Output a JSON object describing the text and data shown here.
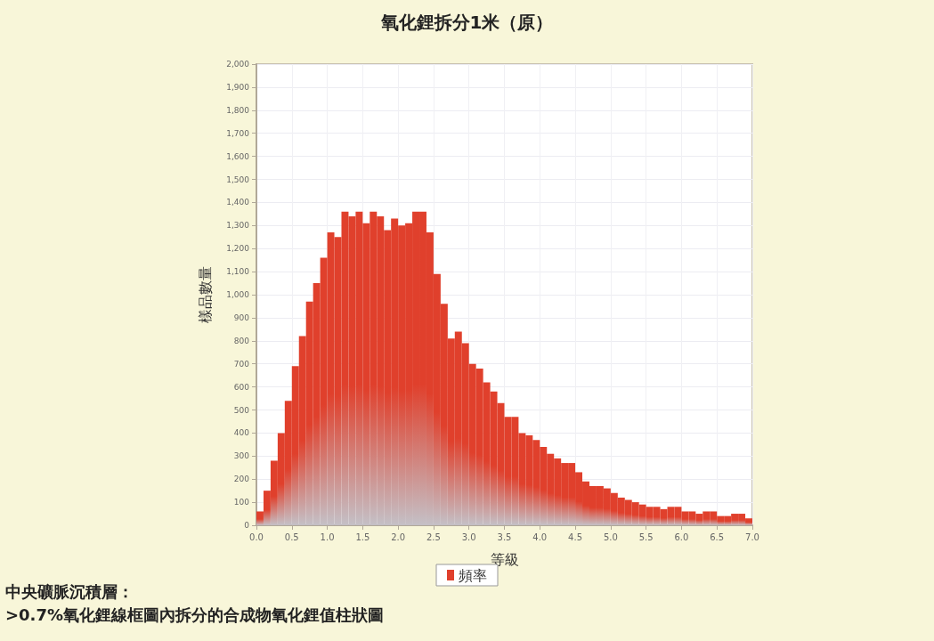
{
  "chart_data": {
    "type": "histogram",
    "title": "氧化鋰拆分1米（原）",
    "xlabel": "等級",
    "ylabel": "樣品數量",
    "annotations": [
      "中央礦脈沉積層：",
      ">0.7%氧化鋰線框圖內拆分的合成物氧化鋰值柱狀圖"
    ],
    "bins": [
      0.0,
      0.1,
      0.2,
      0.3,
      0.4,
      0.5,
      0.6,
      0.7,
      0.8,
      0.9,
      1.0,
      1.1,
      1.2,
      1.3,
      1.4,
      1.5,
      1.6,
      1.7,
      1.8,
      1.9,
      2.0,
      2.1,
      2.2,
      2.3,
      2.4,
      2.5,
      2.6,
      2.7,
      2.8,
      2.9,
      3.0,
      3.1,
      3.2,
      3.3,
      3.4,
      3.5,
      3.6,
      3.7,
      3.8,
      3.9,
      4.0,
      4.1,
      4.2,
      4.3,
      4.4,
      4.5,
      4.6,
      4.7,
      4.8,
      4.9,
      5.0,
      5.1,
      5.2,
      5.3,
      5.4,
      5.5,
      5.6,
      5.7,
      5.8,
      5.9,
      6.0,
      6.1,
      6.2,
      6.3,
      6.4,
      6.5,
      6.6,
      6.7,
      6.8,
      6.9,
      7.0
    ],
    "series": [
      {
        "name": "頻率",
        "color": "#e0402c",
        "values": [
          60,
          150,
          280,
          400,
          540,
          690,
          820,
          970,
          1050,
          1160,
          1270,
          1250,
          1360,
          1340,
          1360,
          1310,
          1360,
          1340,
          1280,
          1330,
          1300,
          1310,
          1360,
          1360,
          1270,
          1090,
          960,
          810,
          840,
          790,
          700,
          680,
          620,
          580,
          530,
          470,
          470,
          400,
          390,
          370,
          340,
          310,
          290,
          270,
          270,
          230,
          190,
          170,
          170,
          160,
          140,
          120,
          110,
          100,
          90,
          80,
          80,
          70,
          80,
          80,
          60,
          60,
          50,
          60,
          60,
          40,
          40,
          50,
          50,
          30
        ]
      }
    ],
    "xlim": [
      0,
      7.0
    ],
    "xticks": [
      {
        "value": 0,
        "label": "0.0"
      },
      {
        "value": 0.5,
        "label": "0.5"
      },
      {
        "value": 1,
        "label": "1.0"
      },
      {
        "value": 1.5,
        "label": "1.5"
      },
      {
        "value": 2,
        "label": "2.0"
      },
      {
        "value": 2.5,
        "label": "2.5"
      },
      {
        "value": 3,
        "label": "3.0"
      },
      {
        "value": 3.5,
        "label": "3.5"
      },
      {
        "value": 4,
        "label": "4.0"
      },
      {
        "value": 4.5,
        "label": "4.5"
      },
      {
        "value": 5,
        "label": "5.0"
      },
      {
        "value": 5.5,
        "label": "5.5"
      },
      {
        "value": 6,
        "label": "6.0"
      },
      {
        "value": 6.5,
        "label": "6.5"
      },
      {
        "value": 7,
        "label": "7.0"
      }
    ],
    "ylim": [
      0,
      2000
    ],
    "yticks": [
      0,
      100,
      200,
      300,
      400,
      500,
      600,
      700,
      800,
      900,
      {
        "value": 1000,
        "label": "1,000"
      },
      {
        "value": 1100,
        "label": "1,100"
      },
      {
        "value": 1200,
        "label": "1,200"
      },
      {
        "value": 1300,
        "label": "1,300"
      },
      {
        "value": 1400,
        "label": "1,400"
      },
      {
        "value": 1500,
        "label": "1,500"
      },
      {
        "value": 1600,
        "label": "1,600"
      },
      {
        "value": 1700,
        "label": "1,700"
      },
      {
        "value": 1800,
        "label": "1,800"
      },
      {
        "value": 1900,
        "label": "1,900"
      },
      {
        "value": 2000,
        "label": "2,000"
      }
    ],
    "grid": true,
    "legend": "bottom"
  }
}
